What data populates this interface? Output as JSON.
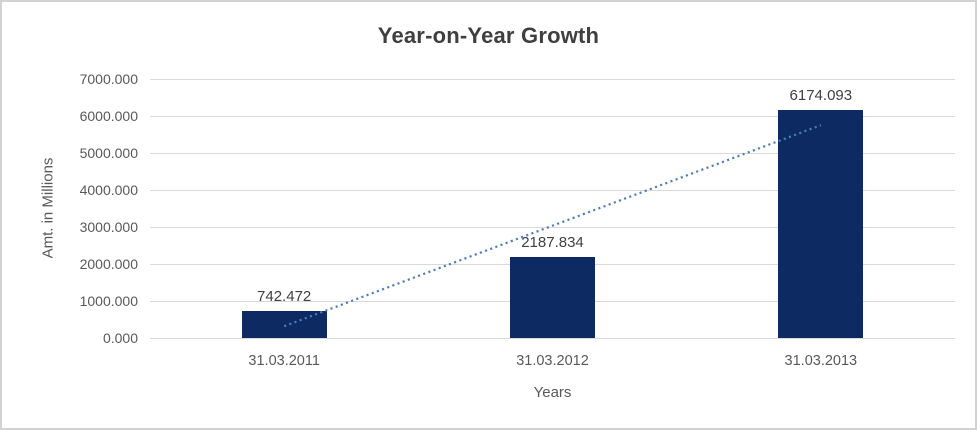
{
  "window": {
    "background_color": "#ffffff",
    "border_color": "#d2d2d2"
  },
  "chart_data": {
    "type": "bar",
    "title": "Year-on-Year Growth",
    "xlabel": "Years",
    "ylabel": "Amt. in Millions",
    "categories": [
      "31.03.2011",
      "31.03.2012",
      "31.03.2013"
    ],
    "values": [
      742.472,
      2187.834,
      6174.093
    ],
    "data_labels": [
      "742.472",
      "2187.834",
      "6174.093"
    ],
    "ylim": [
      0,
      7000
    ],
    "y_tick_values": [
      0,
      1000,
      2000,
      3000,
      4000,
      5000,
      6000,
      7000
    ],
    "y_tick_labels": [
      "0.000",
      "1000.000",
      "2000.000",
      "3000.000",
      "4000.000",
      "5000.000",
      "6000.000",
      "7000.000"
    ],
    "grid": true,
    "legend_position": "none",
    "trendline": {
      "type": "linear",
      "style": "dotted",
      "start_value": 319,
      "end_value": 5751,
      "color": "#4d7cbc"
    },
    "colors": {
      "bar": "#0d2a63",
      "gridline": "#d9d9d9",
      "title_text": "#3f3f3f",
      "axis_text": "#595959",
      "data_label_text": "#404040"
    }
  }
}
